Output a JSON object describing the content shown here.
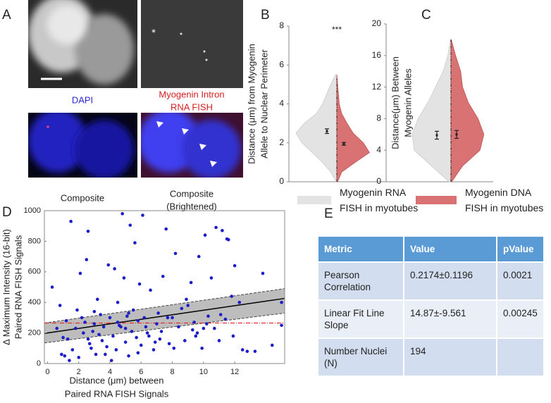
{
  "panel_labels": [
    "A",
    "B",
    "C",
    "D",
    "E"
  ],
  "panel_a": {
    "captions": [
      [
        "DAPI"
      ],
      [
        "Myogenin Intron",
        "RNA FISH"
      ],
      [
        "Composite"
      ],
      [
        "Composite",
        "(Brightened)"
      ]
    ]
  },
  "chart_data": [
    {
      "type": "violin",
      "ylabel": [
        "Distance (μm) from Myogenin",
        "Allele to Nuclear Perimeter"
      ],
      "ylim": [
        0,
        8
      ],
      "yticks": [
        0,
        2,
        4,
        6,
        8
      ],
      "annotation": "***",
      "range_line": [
        0,
        5.3
      ],
      "series": [
        {
          "name": "Myogenin RNA FISH in myotubes",
          "color": "#e3e3e3",
          "y": [
            0,
            0.5,
            1,
            1.5,
            2,
            2.5,
            3,
            3.5,
            4,
            4.5,
            5,
            5.5
          ],
          "density": [
            0.02,
            0.15,
            0.35,
            0.6,
            0.85,
            1.0,
            0.8,
            0.5,
            0.35,
            0.25,
            0.15,
            0.03
          ],
          "mean": 2.6,
          "error": 0.12
        },
        {
          "name": "Myogenin DNA FISH in myotubes",
          "color": "#d97373",
          "y": [
            0,
            0.5,
            1,
            1.5,
            2,
            2.5,
            3,
            3.5,
            4,
            4.5,
            5,
            5.5
          ],
          "density": [
            0.02,
            0.12,
            0.45,
            0.8,
            0.65,
            0.4,
            0.25,
            0.12,
            0.06,
            0.04,
            0.02,
            0
          ],
          "mean": 1.95,
          "error": 0.07
        }
      ]
    },
    {
      "type": "violin",
      "ylabel": [
        "Distance(μm) Between",
        "Myogenin Alleles"
      ],
      "ylim": [
        0,
        20
      ],
      "yticks": [
        0,
        4,
        8,
        12,
        16,
        20
      ],
      "range_line": [
        0,
        18
      ],
      "series": [
        {
          "color": "#e3e3e3",
          "y": [
            0,
            2,
            4,
            6,
            8,
            10,
            12,
            14,
            16,
            18
          ],
          "density": [
            0.05,
            0.5,
            0.95,
            1.0,
            0.85,
            0.6,
            0.4,
            0.2,
            0.08,
            0.01
          ],
          "mean": 5.9,
          "error": 0.5
        },
        {
          "color": "#d97373",
          "y": [
            0,
            2,
            4,
            6,
            8,
            10,
            12,
            14,
            16,
            18
          ],
          "density": [
            0.02,
            0.3,
            0.75,
            0.85,
            0.7,
            0.45,
            0.3,
            0.25,
            0.12,
            0.01
          ],
          "mean": 6.0,
          "error": 0.5
        }
      ]
    },
    {
      "type": "scatter",
      "xlabel": [
        "Distance (μm) between",
        "Paired RNA FISH Signals"
      ],
      "ylabel": [
        "Δ Maximum Intensity (16-bit)",
        "Paired RNA FISH Signals"
      ],
      "xlim": [
        -0.2,
        15.2
      ],
      "xticks": [
        0,
        2,
        4,
        6,
        8,
        10,
        12
      ],
      "ylim": [
        0,
        1000
      ],
      "yticks": [
        0,
        200,
        400,
        600,
        800,
        1000
      ],
      "color": "#1c1cc8",
      "x": [
        0.3,
        0.8,
        1.0,
        1.2,
        1.3,
        1.5,
        1.6,
        1.8,
        2.0,
        2.1,
        2.2,
        2.4,
        2.5,
        2.6,
        2.7,
        2.9,
        3.0,
        3.1,
        3.3,
        3.4,
        3.5,
        3.6,
        3.8,
        3.9,
        4.0,
        4.1,
        4.2,
        4.3,
        4.4,
        4.5,
        4.6,
        4.8,
        4.9,
        5.0,
        5.1,
        5.2,
        5.3,
        5.4,
        5.5,
        5.6,
        5.7,
        5.8,
        5.9,
        6.0,
        6.1,
        6.2,
        6.3,
        6.5,
        6.6,
        6.8,
        7.0,
        7.1,
        7.3,
        7.4,
        7.6,
        7.8,
        8.0,
        8.2,
        8.4,
        8.6,
        8.8,
        9.0,
        9.2,
        9.4,
        9.6,
        9.7,
        9.9,
        10.1,
        10.3,
        10.5,
        10.7,
        10.8,
        11.0,
        11.2,
        11.4,
        11.5,
        11.6,
        11.8,
        12.0,
        12.3,
        13.3,
        13.8,
        14.4,
        15.0,
        15.0,
        0.6,
        1.1,
        1.9,
        2.3,
        2.8,
        3.2,
        3.7,
        4.7,
        5.2,
        5.8,
        6.4,
        7.2,
        8.1,
        8.9,
        9.5,
        10.2,
        11.1,
        11.9,
        12.8,
        1.4,
        3.0,
        4.5,
        6.9,
        10.0,
        0.9,
        2.6,
        5.0,
        7.7,
        9.3,
        12.5
      ],
      "y": [
        500,
        380,
        170,
        280,
        160,
        930,
        90,
        230,
        40,
        590,
        300,
        270,
        680,
        865,
        130,
        210,
        260,
        60,
        190,
        320,
        150,
        240,
        110,
        645,
        300,
        20,
        180,
        620,
        90,
        400,
        250,
        980,
        560,
        140,
        310,
        50,
        905,
        210,
        350,
        790,
        170,
        280,
        520,
        120,
        970,
        300,
        240,
        180,
        480,
        90,
        260,
        330,
        210,
        570,
        880,
        130,
        300,
        720,
        240,
        360,
        150,
        380,
        530,
        270,
        200,
        700,
        100,
        840,
        310,
        560,
        230,
        890,
        150,
        870,
        290,
        815,
        810,
        440,
        640,
        400,
        80,
        590,
        120,
        400,
        250,
        230,
        50,
        350,
        200,
        100,
        420,
        60,
        240,
        330,
        70,
        200,
        160,
        100,
        420,
        180,
        260,
        320,
        180,
        80,
        20,
        340,
        270,
        140,
        230,
        60,
        160,
        230,
        300,
        220,
        90
      ],
      "fit": {
        "x": [
          -0.2,
          15.2
        ],
        "y": [
          197,
          426
        ],
        "lower": [
          135,
          330
        ],
        "upper": [
          265,
          490
        ]
      },
      "reference_y": 265,
      "reference_color": "#e03030"
    }
  ],
  "table": {
    "header": [
      "Metric",
      "Value",
      "pValue"
    ],
    "rows": [
      [
        "Pearson Correlation",
        "0.2174±0.1196",
        "0.0021"
      ],
      [
        "Linear Fit Line Slope",
        "14.87±-9.561",
        "0.00245"
      ],
      [
        "Number Nuclei (N)",
        "194"
      ]
    ]
  }
}
